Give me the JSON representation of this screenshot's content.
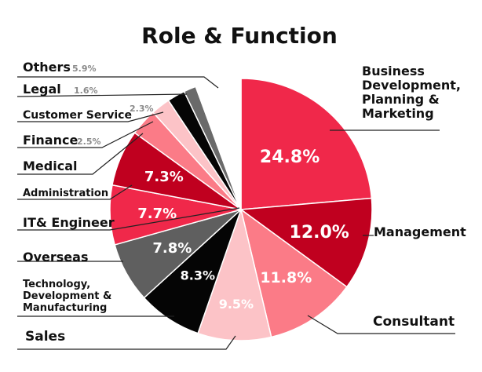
{
  "chart_data": {
    "type": "pie",
    "title": "Role & Function",
    "slices": [
      {
        "label": "Business Development, Planning & Marketing",
        "value": 24.8,
        "value_label": "24.8%",
        "color": "#f0284a"
      },
      {
        "label": "Management",
        "value": 12.0,
        "value_label": "12.0%",
        "color": "#c0001f"
      },
      {
        "label": "Consultant",
        "value": 11.8,
        "value_label": "11.8%",
        "color": "#fb7b87"
      },
      {
        "label": "Sales",
        "value": 9.5,
        "value_label": "9.5%",
        "color": "#fcc3c7"
      },
      {
        "label": "Technology, Development & Manufacturing",
        "value": 8.3,
        "value_label": "8.3%",
        "color": "#050505"
      },
      {
        "label": "Overseas",
        "value": 7.8,
        "value_label": "7.8%",
        "color": "#5f5f5f"
      },
      {
        "label": "IT& Engineer",
        "value": 7.7,
        "value_label": "7.7%",
        "color": "#f0284a"
      },
      {
        "label": "Administration",
        "value": 7.3,
        "value_label": "7.3%",
        "color": "#c0001f"
      },
      {
        "label": "Medical",
        "value": 3.5,
        "value_label": "",
        "color": "#fb7b87"
      },
      {
        "label": "Finance",
        "value": 2.5,
        "value_label": "2.5%",
        "color": "#fcc3c7"
      },
      {
        "label": "Customer Service",
        "value": 2.3,
        "value_label": "2.3%",
        "color": "#050505"
      },
      {
        "label": "Legal",
        "value": 1.6,
        "value_label": "1.6%",
        "color": "#6a6a6a"
      },
      {
        "label": "Others",
        "value": 5.9,
        "value_label": "5.9%",
        "color": "#ffffff"
      }
    ]
  }
}
